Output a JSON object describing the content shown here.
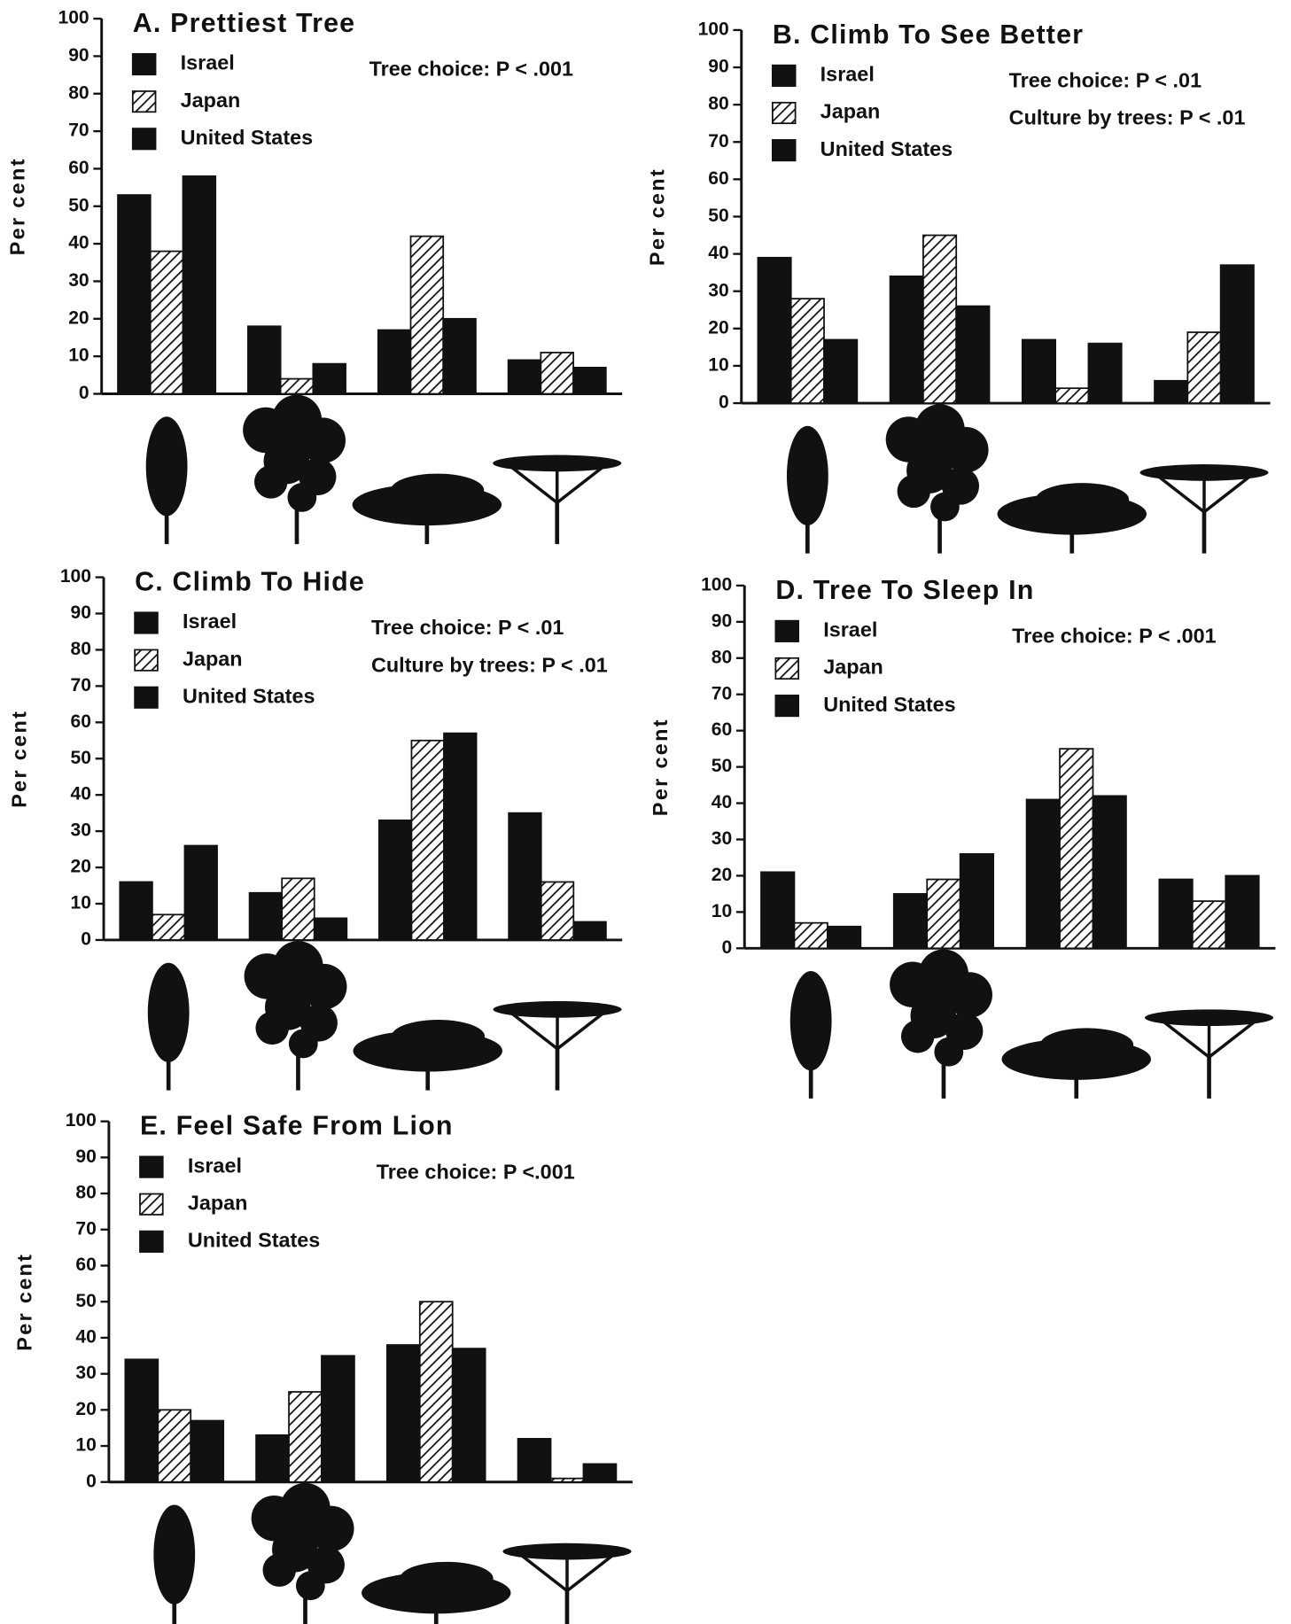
{
  "chart_data": [
    {
      "type": "bar",
      "title": "A. Prettiest Tree",
      "ylabel": "Per cent",
      "annotations": [
        "Tree choice: P < .001"
      ],
      "categories": [
        null,
        null,
        null,
        null
      ],
      "ylim": [
        0,
        100
      ],
      "yticks": [
        0,
        10,
        20,
        30,
        40,
        50,
        60,
        70,
        80,
        90,
        100
      ],
      "series": [
        {
          "name": "Israel",
          "color": "#111111",
          "hatch": false,
          "values": [
            53,
            18,
            17,
            9
          ]
        },
        {
          "name": "Japan",
          "color": "#111111",
          "hatch": true,
          "values": [
            38,
            4,
            42,
            11
          ]
        },
        {
          "name": "United States",
          "color": "#111111",
          "hatch": false,
          "values": [
            58,
            8,
            20,
            7
          ]
        }
      ]
    },
    {
      "type": "bar",
      "title": "B. Climb To See Better",
      "ylabel": "Per cent",
      "annotations": [
        "Tree choice: P < .01",
        "Culture by trees: P < .01"
      ],
      "categories": [
        null,
        null,
        null,
        null
      ],
      "ylim": [
        0,
        100
      ],
      "yticks": [
        0,
        10,
        20,
        30,
        40,
        50,
        60,
        70,
        80,
        90,
        100
      ],
      "series": [
        {
          "name": "Israel",
          "color": "#111111",
          "hatch": false,
          "values": [
            39,
            34,
            17,
            6
          ]
        },
        {
          "name": "Japan",
          "color": "#111111",
          "hatch": true,
          "values": [
            28,
            45,
            4,
            19
          ]
        },
        {
          "name": "United States",
          "color": "#111111",
          "hatch": false,
          "values": [
            17,
            26,
            16,
            37
          ]
        }
      ]
    },
    {
      "type": "bar",
      "title": "C. Climb To Hide",
      "ylabel": "Per cent",
      "annotations": [
        "Tree choice: P < .01",
        "Culture by trees: P < .01"
      ],
      "categories": [
        null,
        null,
        null,
        null
      ],
      "ylim": [
        0,
        100
      ],
      "yticks": [
        0,
        10,
        20,
        30,
        40,
        50,
        60,
        70,
        80,
        90,
        100
      ],
      "series": [
        {
          "name": "Israel",
          "color": "#111111",
          "hatch": false,
          "values": [
            16,
            13,
            33,
            35
          ]
        },
        {
          "name": "Japan",
          "color": "#111111",
          "hatch": true,
          "values": [
            7,
            17,
            55,
            16
          ]
        },
        {
          "name": "United States",
          "color": "#111111",
          "hatch": false,
          "values": [
            26,
            6,
            57,
            5
          ]
        }
      ]
    },
    {
      "type": "bar",
      "title": "D. Tree To Sleep In",
      "ylabel": "Per cent",
      "annotations": [
        "Tree choice: P < .001"
      ],
      "categories": [
        null,
        null,
        null,
        null
      ],
      "ylim": [
        0,
        100
      ],
      "yticks": [
        0,
        10,
        20,
        30,
        40,
        50,
        60,
        70,
        80,
        90,
        100
      ],
      "series": [
        {
          "name": "Israel",
          "color": "#111111",
          "hatch": false,
          "values": [
            21,
            15,
            41,
            19
          ]
        },
        {
          "name": "Japan",
          "color": "#111111",
          "hatch": true,
          "values": [
            7,
            19,
            55,
            13
          ]
        },
        {
          "name": "United States",
          "color": "#111111",
          "hatch": false,
          "values": [
            6,
            26,
            42,
            20
          ]
        }
      ]
    },
    {
      "type": "bar",
      "title": "E. Feel Safe From Lion",
      "ylabel": "Per cent",
      "annotations": [
        "Tree choice: P <.001"
      ],
      "categories": [
        null,
        null,
        null,
        null
      ],
      "ylim": [
        0,
        100
      ],
      "yticks": [
        0,
        10,
        20,
        30,
        40,
        50,
        60,
        70,
        80,
        90,
        100
      ],
      "series": [
        {
          "name": "Israel",
          "color": "#111111",
          "hatch": false,
          "values": [
            34,
            13,
            38,
            12
          ]
        },
        {
          "name": "Japan",
          "color": "#111111",
          "hatch": true,
          "values": [
            20,
            25,
            50,
            1
          ]
        },
        {
          "name": "United States",
          "color": "#111111",
          "hatch": false,
          "values": [
            17,
            35,
            37,
            5
          ]
        }
      ]
    }
  ]
}
